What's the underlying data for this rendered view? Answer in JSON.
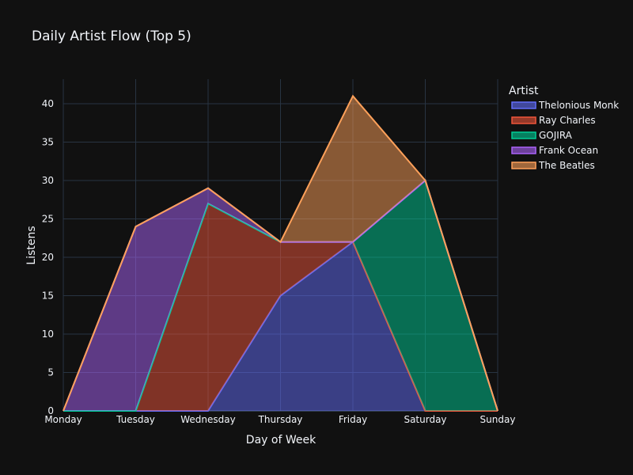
{
  "chart_data": {
    "type": "area",
    "stacked": true,
    "title": "Daily Artist Flow (Top 5)",
    "xlabel": "Day of Week",
    "ylabel": "Listens",
    "categories": [
      "Monday",
      "Tuesday",
      "Wednesday",
      "Thursday",
      "Friday",
      "Saturday",
      "Sunday"
    ],
    "yticks": [
      0,
      5,
      10,
      15,
      20,
      25,
      30,
      35,
      40
    ],
    "ylim": [
      0,
      43.2
    ],
    "grid": true,
    "legend_title": "Artist",
    "legend_position": "top-right",
    "series": [
      {
        "name": "Thelonious Monk",
        "color": "#636efa",
        "values": [
          0,
          0,
          0,
          15,
          22,
          0,
          0
        ]
      },
      {
        "name": "Ray Charles",
        "color": "#EF553B",
        "values": [
          0,
          0,
          27,
          7,
          0,
          0,
          0
        ]
      },
      {
        "name": "GOJIRA",
        "color": "#00cc96",
        "values": [
          0,
          0,
          0,
          0,
          0,
          30,
          0
        ]
      },
      {
        "name": "Frank Ocean",
        "color": "#ab63fa",
        "values": [
          0,
          24,
          2,
          0,
          0,
          0,
          0
        ]
      },
      {
        "name": "The Beatles",
        "color": "#FFA15A",
        "values": [
          0,
          0,
          0,
          0,
          19,
          0,
          0
        ]
      }
    ]
  }
}
